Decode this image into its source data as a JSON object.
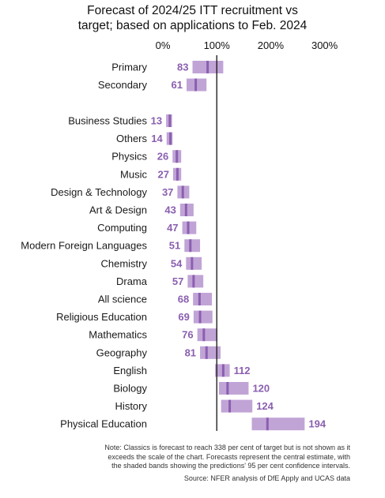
{
  "title_line1": "Forecast of 2024/25 ITT recruitment vs",
  "title_line2": "target; based on applications to Feb. 2024",
  "note_line1": "Note: Classics is forecast to reach 338 per cent of target but is not shown as it",
  "note_line2": "exceeds the scale of the chart. Forecasts represent the central estimate, with",
  "note_line3": "the shaded bands showing the predictions' 95 per cent confidence intervals.",
  "source": "Source: NFER analysis of DfE Apply and UCAS data",
  "colors": {
    "band": "#c1a4d6",
    "estimate": "#8a5fb0",
    "label": "#8a5fb0",
    "target_line": "#111111"
  },
  "chart_data": {
    "type": "bar",
    "xlim": [
      0,
      300
    ],
    "x_ticks": [
      "0%",
      "100%",
      "200%",
      "300%"
    ],
    "x_tick_values": [
      0,
      100,
      200,
      300
    ],
    "target_line": 100,
    "legend": "none",
    "grid": false,
    "categories": [
      "Primary",
      "Secondary",
      "Business Studies",
      "Others",
      "Physics",
      "Music",
      "Design & Technology",
      "Art & Design",
      "Computing",
      "Modern Foreign Languages",
      "Chemistry",
      "Drama",
      "All science",
      "Religious Education",
      "Mathematics",
      "Geography",
      "English",
      "Biology",
      "History",
      "Physical Education"
    ],
    "values": [
      83,
      61,
      13,
      14,
      26,
      27,
      37,
      43,
      47,
      51,
      54,
      57,
      68,
      69,
      76,
      81,
      112,
      120,
      124,
      194
    ],
    "lower": [
      55,
      44,
      6,
      7,
      18,
      19,
      27,
      32,
      36,
      40,
      43,
      46,
      56,
      57,
      64,
      69,
      97,
      104,
      108,
      165
    ],
    "upper": [
      112,
      81,
      17,
      18,
      34,
      34,
      49,
      57,
      62,
      69,
      72,
      75,
      91,
      92,
      101,
      107,
      124,
      159,
      166,
      263
    ]
  }
}
